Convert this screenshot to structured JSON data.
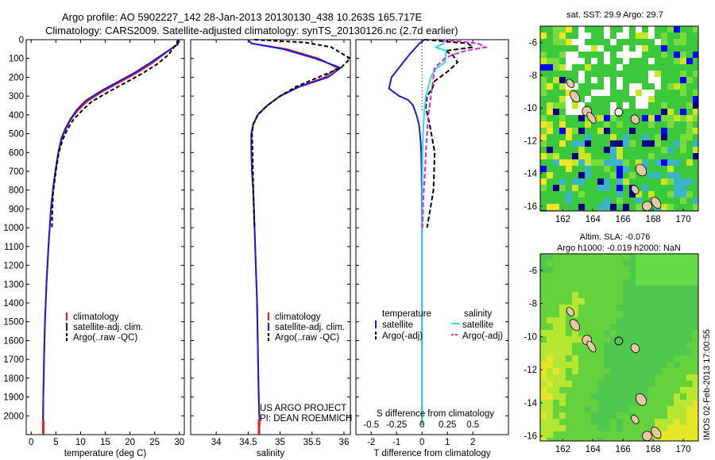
{
  "header": {
    "title_line1": "Argo profile: AO 5902227_142 28-Jan-2013 20130130_438 10.263S 165.717E",
    "title_line2": "Climatology: CARS2009. Satellite-adjusted climatology: synTS_20130126.nc (2.7d earlier)"
  },
  "credits": {
    "project": "US ARGO PROJECT",
    "pi": "PI: DEAN ROEMMICH",
    "stamp": "IMOS 02-Feb-2013 17:00:55"
  },
  "colors": {
    "climatology": "#e02020",
    "satellite": "#1a1ae6",
    "argo": "#000000",
    "sat_salinity": "#22e0e0",
    "argo_salinity": "#e020e0"
  },
  "legends": {
    "profile": [
      "climatology",
      "satellite-adj. clim.",
      "Argo(..raw -QC)"
    ],
    "diff": {
      "temp_head": "temperature",
      "sal_head": "salinity",
      "temp_items": [
        "satellite",
        "Argo(-adj)"
      ],
      "sal_items": [
        "satellite",
        "Argo(-adj)"
      ]
    }
  },
  "map_titles": {
    "sst": "sat. SST: 29.9  Argo: 29.7",
    "sla1": "Altim. SLA: -0.076",
    "sla2": "Argo h1000: -0.019 h2000: NaN"
  },
  "chart_data": [
    {
      "type": "line",
      "xlabel": "temperature (deg C)",
      "ylabel": "",
      "xlim": [
        -1,
        31
      ],
      "ylim": [
        2100,
        0
      ],
      "xticks": [
        0,
        5,
        10,
        15,
        20,
        25,
        30
      ],
      "yticks": [
        0,
        100,
        200,
        300,
        400,
        500,
        600,
        700,
        800,
        900,
        1000,
        1100,
        1200,
        1300,
        1400,
        1500,
        1600,
        1700,
        1800,
        1900,
        2000
      ],
      "series": [
        {
          "name": "climatology",
          "x": [
            29.7,
            29.5,
            27,
            24.5,
            21.5,
            18,
            14.5,
            11.5,
            9.5,
            8,
            7,
            6.2,
            5.5,
            4.9,
            4.4,
            4,
            3.5,
            3.1,
            2.8,
            2.6,
            2.45,
            2.4
          ],
          "y": [
            0,
            25,
            75,
            125,
            175,
            225,
            275,
            325,
            375,
            425,
            475,
            525,
            600,
            700,
            800,
            900,
            1100,
            1300,
            1500,
            1700,
            1900,
            2050
          ]
        },
        {
          "name": "satellite-adj. clim.",
          "x": [
            29.9,
            29.7,
            26.8,
            24,
            21,
            17.5,
            14,
            11,
            9.2,
            7.9,
            6.9,
            6.1,
            5.5,
            4.9,
            4.4,
            4,
            3.5,
            3.1,
            2.8,
            2.6,
            2.45,
            2.4
          ],
          "y": [
            0,
            25,
            75,
            125,
            175,
            225,
            275,
            325,
            375,
            425,
            475,
            525,
            600,
            700,
            800,
            900,
            1100,
            1300,
            1500,
            1700,
            1900,
            2050
          ]
        },
        {
          "name": "Argo(..raw -QC)",
          "x": [
            29.7,
            29.5,
            27.8,
            25.5,
            22.5,
            19,
            15.5,
            12.2,
            10.2,
            8.4,
            7.3,
            6.4,
            5.6,
            5,
            4.5,
            4.3,
            4.2
          ],
          "y": [
            0,
            20,
            80,
            130,
            180,
            230,
            280,
            330,
            380,
            430,
            480,
            530,
            600,
            700,
            800,
            900,
            1000
          ]
        }
      ]
    },
    {
      "type": "line",
      "xlabel": "salinity",
      "ylabel": "",
      "xlim": [
        33.6,
        36.1
      ],
      "ylim": [
        2100,
        0
      ],
      "xticks": [
        34,
        34.5,
        35,
        35.5,
        36
      ],
      "series": [
        {
          "name": "climatology",
          "x": [
            34.5,
            34.55,
            35.1,
            35.6,
            35.9,
            35.7,
            35.3,
            35,
            34.8,
            34.65,
            34.58,
            34.55,
            34.55,
            34.56,
            34.58,
            34.6,
            34.62,
            34.64,
            34.65,
            34.66,
            34.67,
            34.68
          ],
          "y": [
            0,
            20,
            50,
            100,
            150,
            200,
            250,
            300,
            350,
            400,
            450,
            500,
            600,
            700,
            800,
            1000,
            1200,
            1400,
            1600,
            1800,
            1950,
            2050
          ]
        },
        {
          "name": "satellite-adj. clim.",
          "x": [
            34.5,
            34.55,
            35.05,
            35.55,
            35.95,
            35.75,
            35.3,
            35,
            34.8,
            34.65,
            34.58,
            34.55,
            34.55,
            34.56,
            34.58,
            34.6,
            34.62,
            34.64,
            34.65,
            34.66,
            34.67,
            34.68
          ],
          "y": [
            0,
            20,
            50,
            100,
            150,
            200,
            250,
            300,
            350,
            400,
            450,
            500,
            600,
            700,
            800,
            1000,
            1200,
            1400,
            1600,
            1800,
            1950,
            2050
          ]
        },
        {
          "name": "Argo(..raw -QC)",
          "x": [
            34.6,
            35.4,
            35.8,
            36.1,
            35.95,
            35.6,
            35.25,
            35,
            34.8,
            34.65,
            34.58,
            34.56,
            34.57,
            34.58,
            34.6
          ],
          "y": [
            0,
            15,
            40,
            100,
            150,
            200,
            250,
            300,
            350,
            400,
            450,
            500,
            600,
            800,
            1000
          ]
        }
      ]
    },
    {
      "type": "line",
      "xlabel": "T difference from climatology",
      "xlabel_top": "S difference from climatology",
      "ylabel": "",
      "xlim": [
        -2.6,
        3.4
      ],
      "ylim": [
        2100,
        0
      ],
      "xticks": [
        -2,
        -1,
        0,
        1,
        2
      ],
      "xticks_top": [
        -0.5,
        -0.25,
        0,
        0.25,
        0.5
      ],
      "series": [
        {
          "name": "temperature satellite",
          "x": [
            0.1,
            -0.1,
            -0.5,
            -1.2,
            -1.3,
            -0.9,
            -0.55,
            -0.35,
            -0.22,
            -0.12,
            -0.08,
            -0.05,
            -0.03,
            -0.02,
            -0.01,
            0,
            0,
            0,
            0
          ],
          "y": [
            0,
            20,
            80,
            200,
            260,
            300,
            320,
            350,
            400,
            450,
            500,
            550,
            600,
            700,
            800,
            1000,
            1300,
            1700,
            2050
          ]
        },
        {
          "name": "temperature Argo(-adj)",
          "x": [
            0.1,
            1.8,
            2.0,
            0.9,
            1.2,
            1.4,
            1.1,
            0.8,
            0.5,
            0.4,
            0.2,
            0.15,
            0.3,
            0.5,
            0.45,
            0.2
          ],
          "y": [
            0,
            20,
            40,
            60,
            80,
            120,
            160,
            190,
            220,
            260,
            300,
            360,
            450,
            600,
            800,
            1000
          ]
        },
        {
          "name": "salinity satellite",
          "x": [
            0.9,
            0.85,
            0.55,
            0.95,
            0.9,
            0.5,
            0.35,
            0.25,
            0.15,
            0.08,
            0.04,
            0.02,
            0.01,
            0,
            0,
            0
          ],
          "y": [
            0,
            20,
            40,
            60,
            120,
            160,
            200,
            250,
            300,
            400,
            500,
            600,
            800,
            1000,
            1500,
            2050
          ]
        },
        {
          "name": "salinity Argo(-adj)",
          "x": [
            0.8,
            2.2,
            2.5,
            1.7,
            1.2,
            0.9,
            0.5,
            0.45,
            0.35,
            0.25,
            0.2,
            0.15,
            0.12,
            0.05,
            0.02
          ],
          "y": [
            0,
            20,
            40,
            60,
            80,
            100,
            150,
            200,
            300,
            400,
            500,
            600,
            700,
            850,
            1000
          ]
        }
      ]
    },
    {
      "type": "heatmap",
      "title": "sat. SST: 29.9  Argo: 29.7",
      "xlim": [
        160.5,
        171
      ],
      "ylim": [
        -16.3,
        -5
      ],
      "xticks": [
        162,
        164,
        166,
        168,
        170
      ],
      "yticks": [
        -6,
        -8,
        -10,
        -12,
        -14,
        -16
      ],
      "marker": {
        "lon": 165.717,
        "lat": -10.263
      }
    },
    {
      "type": "heatmap",
      "title": "Altim. SLA: -0.076",
      "xlim": [
        160.5,
        171
      ],
      "ylim": [
        -16.3,
        -5
      ],
      "xticks": [
        162,
        164,
        166,
        168,
        170
      ],
      "yticks": [
        -6,
        -8,
        -10,
        -12,
        -14,
        -16
      ],
      "marker": {
        "lon": 165.717,
        "lat": -10.263
      }
    }
  ]
}
